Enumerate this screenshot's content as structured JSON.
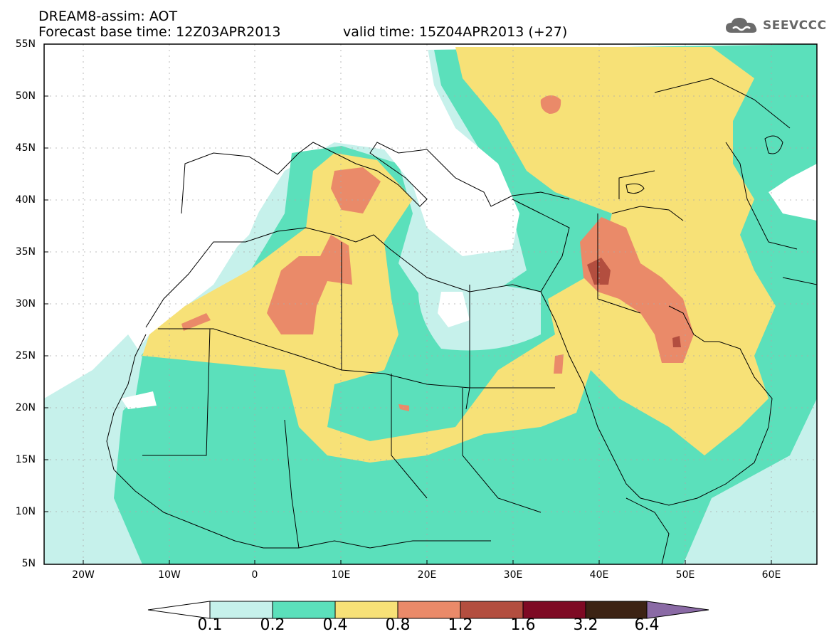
{
  "header": {
    "title_line1": "DREAM8-assim: AOT",
    "title_line2": "Forecast base time: 12Z03APR2013",
    "valid_time": "valid time: 15Z04APR2013 (+27)",
    "logo_text": "SEEVCCC",
    "logo_icon": "cloud-icon"
  },
  "map": {
    "lat_labels": [
      "55N",
      "50N",
      "45N",
      "40N",
      "35N",
      "30N",
      "25N",
      "20N",
      "15N",
      "10N",
      "5N"
    ],
    "lon_labels": [
      "20W",
      "10W",
      "0",
      "10E",
      "20E",
      "30E",
      "40E",
      "50E",
      "60E"
    ]
  },
  "colorbar": {
    "labels": [
      "0.1",
      "0.2",
      "0.4",
      "0.8",
      "1.2",
      "1.6",
      "3.2",
      "6.4"
    ],
    "colors": [
      "#c6f1eb",
      "#5be0bb",
      "#f7e177",
      "#ea8a69",
      "#b34e3f",
      "#7e0a24",
      "#3c2314"
    ],
    "under_color": "#ffffff",
    "over_color": "#8a6aa5"
  }
}
